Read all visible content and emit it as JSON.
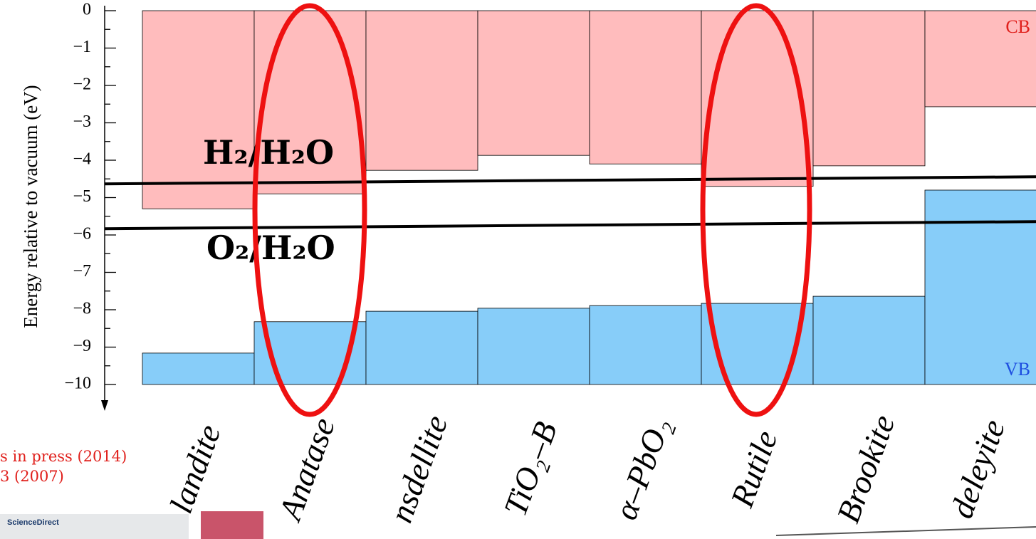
{
  "chart_data": {
    "type": "band",
    "y_label": "Energy relative to vacuum (eV)",
    "categories": [
      "landite",
      "Anatase",
      "nsdellite",
      "TiO₂–B",
      "α–PbO₂",
      "Rutile",
      "Brookite",
      "deleyite"
    ],
    "series": [
      {
        "name": "CB",
        "color": "#ffbcbd",
        "values": [
          -5.3,
          -4.9,
          -4.27,
          -3.87,
          -4.1,
          -4.7,
          -4.15,
          -2.57
        ]
      },
      {
        "name": "VB",
        "color": "#87cdf9",
        "values": [
          -9.16,
          -8.32,
          -8.04,
          -7.96,
          -7.89,
          -7.83,
          -7.64,
          -4.8
        ]
      }
    ],
    "ylim": [
      -10,
      0
    ],
    "yticks": [
      0,
      {
        "value": -1,
        "label": "−1"
      },
      {
        "value": -2,
        "label": "−2"
      },
      {
        "value": -3,
        "label": "−3"
      },
      {
        "value": -4,
        "label": "−4"
      },
      {
        "value": -5,
        "label": "−5"
      },
      {
        "value": -6,
        "label": "−6"
      },
      {
        "value": -7,
        "label": "−7"
      },
      {
        "value": -8,
        "label": "−8"
      },
      {
        "value": -9,
        "label": "−9"
      },
      {
        "value": -10,
        "label": "−10"
      }
    ],
    "levels": [
      {
        "label": "H₂/H₂O",
        "value": -4.5
      },
      {
        "label": "O₂/H₂O",
        "value": -5.7
      }
    ],
    "references": [
      "s in press (2014)",
      "3 (2007)"
    ],
    "source": "ScienceDirect"
  }
}
